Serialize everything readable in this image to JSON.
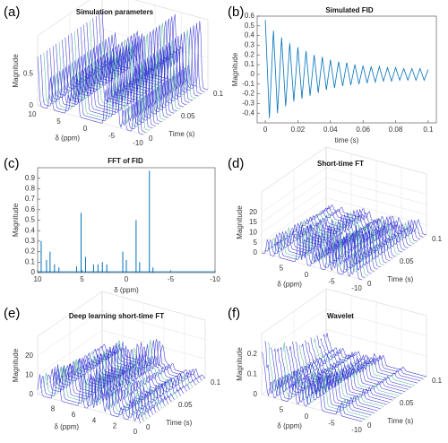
{
  "chart_data": [
    {
      "type": "waterfall3d",
      "label": "(a)",
      "title": "Simulation parameters",
      "xlabel": "δ (ppm)",
      "ylabel": "Time (s)",
      "zlabel": "Magnitude",
      "xlim": [
        10,
        -10
      ],
      "xticks": [
        10,
        5,
        0,
        -5,
        -10
      ],
      "ylim": [
        0,
        0.1
      ],
      "yticks": [
        0,
        0.05,
        0.1
      ],
      "zlim": [
        0,
        1.1
      ],
      "zticks": [
        0,
        0.5
      ]
    },
    {
      "type": "line",
      "label": "(b)",
      "title": "Simulated FID",
      "xlabel": "time (s)",
      "ylabel": "Magnitude",
      "color": "#0072bd",
      "xlim": [
        -0.005,
        0.105
      ],
      "xticks": [
        0,
        0.02,
        0.04,
        0.06,
        0.08,
        0.1
      ],
      "ylim": [
        -0.5,
        0.6
      ],
      "yticks": [
        -0.4,
        -0.3,
        -0.2,
        -0.1,
        0,
        0.1,
        0.2,
        0.3,
        0.4,
        0.5,
        0.6
      ],
      "x": [
        0,
        0.0025,
        0.005,
        0.0075,
        0.01,
        0.0125,
        0.015,
        0.0175,
        0.02,
        0.0225,
        0.025,
        0.0275,
        0.03,
        0.0325,
        0.035,
        0.0375,
        0.04,
        0.0425,
        0.045,
        0.0475,
        0.05,
        0.0525,
        0.055,
        0.0575,
        0.06,
        0.0625,
        0.065,
        0.0675,
        0.07,
        0.0725,
        0.075,
        0.0775,
        0.08,
        0.0825,
        0.085,
        0.0875,
        0.09,
        0.0925,
        0.095,
        0.0975,
        0.1
      ],
      "values": [
        0.56,
        -0.45,
        0.45,
        -0.4,
        0.38,
        -0.33,
        0.32,
        -0.28,
        0.28,
        -0.25,
        0.24,
        -0.22,
        0.2,
        -0.19,
        0.18,
        -0.16,
        0.15,
        -0.14,
        0.13,
        -0.12,
        0.12,
        -0.11,
        0.1,
        -0.1,
        0.09,
        -0.09,
        0.08,
        -0.08,
        0.08,
        -0.07,
        0.07,
        -0.07,
        0.07,
        -0.06,
        0.06,
        -0.06,
        0.06,
        -0.06,
        0.06,
        -0.06,
        0.05
      ]
    },
    {
      "type": "stem",
      "label": "(c)",
      "title": "FFT of FID",
      "xlabel": "δ (ppm)",
      "ylabel": "Magnitude",
      "color": "#0072bd",
      "xlim": [
        10,
        -10
      ],
      "xticks": [
        10,
        5,
        0,
        -5,
        -10
      ],
      "ylim": [
        0,
        1
      ],
      "yticks": [
        0,
        0.1,
        0.2,
        0.3,
        0.4,
        0.5,
        0.6,
        0.7,
        0.8,
        0.9
      ],
      "x": [
        9.6,
        9.0,
        8.6,
        8.1,
        7.6,
        5.6,
        5.1,
        4.6,
        3.7,
        3.2,
        2.7,
        2.2,
        0.4,
        0.0,
        -1.1,
        -1.5,
        -2.6,
        -3.0
      ],
      "values": [
        0.3,
        0.12,
        0.2,
        0.08,
        0.05,
        0.06,
        0.57,
        0.15,
        0.08,
        0.08,
        0.1,
        0.08,
        0.2,
        0.12,
        0.5,
        0.1,
        0.97,
        0.05
      ]
    },
    {
      "type": "waterfall3d",
      "label": "(d)",
      "title": "Short-time FT",
      "xlabel": "δ (ppm)",
      "ylabel": "Time (s)",
      "zlabel": "Magnitude",
      "xlim": [
        10,
        -10
      ],
      "xticks": [
        5,
        0,
        -5,
        -10
      ],
      "ylim": [
        0,
        0.1
      ],
      "yticks": [
        0,
        0.05,
        0.1
      ],
      "zlim": [
        0,
        30
      ],
      "zticks": [
        0,
        5,
        10,
        15,
        20
      ]
    },
    {
      "type": "waterfall3d",
      "label": "(e)",
      "title": "Deep learning short-time FT",
      "xlabel": "δ (ppm)",
      "ylabel": "Time (s)",
      "zlabel": "Magnitude",
      "xlim": [
        10,
        0
      ],
      "xticks": [
        8,
        6,
        4,
        2,
        0
      ],
      "ylim": [
        0,
        0.1
      ],
      "yticks": [
        0,
        0.05,
        0.1
      ],
      "zlim": [
        0,
        30
      ],
      "zticks": [
        0,
        10,
        20
      ]
    },
    {
      "type": "waterfall3d",
      "label": "(f)",
      "title": "Wavelet",
      "xlabel": "δ (ppm)",
      "ylabel": "Time (s)",
      "zlabel": "Magnitude",
      "xlim": [
        10,
        -10
      ],
      "xticks": [
        5,
        0,
        -5,
        -10
      ],
      "ylim": [
        0,
        0.1
      ],
      "yticks": [
        0,
        0.05,
        0.1
      ],
      "zlim": [
        0,
        0.3
      ],
      "zticks": [
        0,
        0.1,
        0.2
      ]
    }
  ]
}
